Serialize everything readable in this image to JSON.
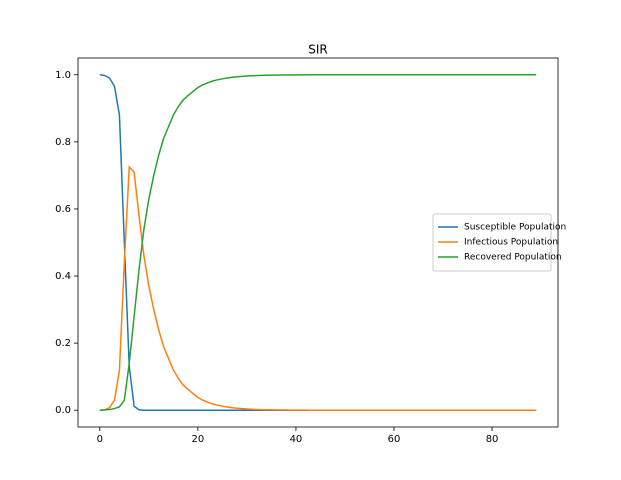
{
  "chart_data": {
    "type": "line",
    "title": "SIR",
    "x": [
      0,
      1,
      2,
      3,
      4,
      5,
      6,
      7,
      8,
      9,
      10,
      11,
      12,
      13,
      14,
      15,
      16,
      17,
      18,
      19,
      20,
      21,
      22,
      23,
      24,
      25,
      26,
      27,
      28,
      29,
      30,
      31,
      32,
      33,
      34,
      35,
      36,
      37,
      38,
      39,
      40,
      41,
      42,
      43,
      44,
      45,
      46,
      47,
      48,
      49,
      50,
      51,
      52,
      53,
      54,
      55,
      56,
      57,
      58,
      59,
      60,
      61,
      62,
      63,
      64,
      65,
      66,
      67,
      68,
      69,
      70,
      71,
      72,
      73,
      74,
      75,
      76,
      77,
      78,
      79,
      80,
      81,
      82,
      83,
      84,
      85,
      86,
      87,
      88,
      89
    ],
    "series": [
      {
        "name": "Susceptible Population",
        "color": "#1f77b4",
        "values": [
          1.0,
          0.998,
          0.99,
          0.965,
          0.88,
          0.5,
          0.13,
          0.012,
          0.001,
          0,
          0,
          0,
          0,
          0,
          0,
          0,
          0,
          0,
          0,
          0,
          0,
          0,
          0,
          0,
          0,
          0,
          0,
          0,
          0,
          0,
          0,
          0,
          0,
          0,
          0,
          0,
          0,
          0,
          0,
          0,
          0,
          0,
          0,
          0,
          0,
          0,
          0,
          0,
          0,
          0,
          0,
          0,
          0,
          0,
          0,
          0,
          0,
          0,
          0,
          0,
          0,
          0,
          0,
          0,
          0,
          0,
          0,
          0,
          0,
          0,
          0,
          0,
          0,
          0,
          0,
          0,
          0,
          0,
          0,
          0,
          0,
          0,
          0,
          0,
          0,
          0,
          0,
          0,
          0,
          0
        ]
      },
      {
        "name": "Infectious Population",
        "color": "#ff7f0e",
        "values": [
          0,
          0.001,
          0.008,
          0.03,
          0.12,
          0.44,
          0.725,
          0.71,
          0.58,
          0.46,
          0.37,
          0.3,
          0.24,
          0.19,
          0.155,
          0.12,
          0.095,
          0.075,
          0.062,
          0.05,
          0.038,
          0.03,
          0.024,
          0.019,
          0.015,
          0.012,
          0.0095,
          0.0075,
          0.006,
          0.0047,
          0.0037,
          0.003,
          0.0023,
          0.0018,
          0.0014,
          0.0011,
          0.0009,
          0.0007,
          0.0005,
          0.0004,
          0.0003,
          0.0002,
          0.0002,
          0.0001,
          0.0001,
          0,
          0,
          0,
          0,
          0,
          0,
          0,
          0,
          0,
          0,
          0,
          0,
          0,
          0,
          0,
          0,
          0,
          0,
          0,
          0,
          0,
          0,
          0,
          0,
          0,
          0,
          0,
          0,
          0,
          0,
          0,
          0,
          0,
          0,
          0,
          0,
          0,
          0,
          0,
          0,
          0,
          0,
          0,
          0,
          0
        ]
      },
      {
        "name": "Recovered Population",
        "color": "#2ca02c",
        "values": [
          0,
          0.001,
          0.002,
          0.005,
          0.01,
          0.03,
          0.14,
          0.28,
          0.42,
          0.54,
          0.63,
          0.7,
          0.76,
          0.81,
          0.845,
          0.88,
          0.905,
          0.925,
          0.938,
          0.95,
          0.962,
          0.97,
          0.976,
          0.981,
          0.985,
          0.988,
          0.9905,
          0.9925,
          0.994,
          0.9953,
          0.9963,
          0.997,
          0.9977,
          0.9982,
          0.9986,
          0.9989,
          0.9991,
          0.9993,
          0.9995,
          0.9996,
          0.9997,
          0.9998,
          0.9998,
          0.9999,
          0.9999,
          1,
          1,
          1,
          1,
          1,
          1,
          1,
          1,
          1,
          1,
          1,
          1,
          1,
          1,
          1,
          1,
          1,
          1,
          1,
          1,
          1,
          1,
          1,
          1,
          1,
          1,
          1,
          1,
          1,
          1,
          1,
          1,
          1,
          1,
          1,
          1,
          1,
          1,
          1,
          1,
          1,
          1,
          1,
          1,
          1
        ]
      }
    ],
    "xlim": [
      -4.45,
      93.45
    ],
    "xticks": [
      0,
      20,
      40,
      60,
      80
    ],
    "ylim": [
      -0.05,
      1.05
    ],
    "yticks": [
      {
        "value": 0,
        "label": "0.0"
      },
      0.2,
      0.4,
      0.6,
      0.8,
      {
        "value": 1,
        "label": "1.0"
      }
    ],
    "legend": "center right"
  }
}
